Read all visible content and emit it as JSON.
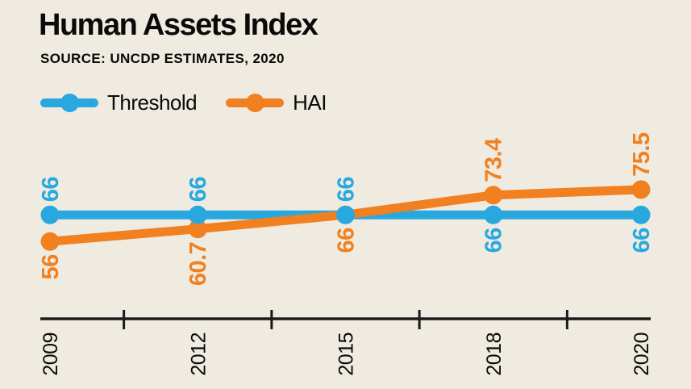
{
  "title": "Human Assets Index",
  "source": "SOURCE: UNCDP ESTIMATES, 2020",
  "colors": {
    "background": "#f0ebe1",
    "threshold": "#29a8e0",
    "hai": "#f08020",
    "axis": "#1a1a1a",
    "text": "#0a0a0a"
  },
  "legend": [
    {
      "label": "Threshold",
      "color": "#29a8e0"
    },
    {
      "label": "HAI",
      "color": "#f08020"
    }
  ],
  "chart_data": {
    "type": "line",
    "title": "Human Assets Index",
    "subtitle": "SOURCE: UNCDP ESTIMATES, 2020",
    "categories": [
      "2009",
      "2012",
      "2015",
      "2018",
      "2020"
    ],
    "series": [
      {
        "name": "Threshold",
        "color_key": "threshold",
        "values": [
          66,
          66,
          66,
          66,
          66
        ],
        "labels": [
          "66",
          "66",
          "66",
          "66",
          "66"
        ],
        "label_side": [
          "above",
          "above",
          "above",
          "below",
          "below"
        ]
      },
      {
        "name": "HAI",
        "color_key": "hai",
        "values": [
          56,
          60.7,
          66,
          73.4,
          75.5
        ],
        "labels": [
          "56",
          "60.7",
          "66",
          "73.4",
          "75.5"
        ],
        "label_side": [
          "below",
          "below",
          "below",
          "above",
          "above"
        ]
      }
    ],
    "xlabel": "",
    "ylabel": "",
    "ylim": [
      50,
      80
    ],
    "grid": false,
    "legend_position": "top-left",
    "tick_style": "between-categories",
    "label_rotation_deg": 90
  }
}
